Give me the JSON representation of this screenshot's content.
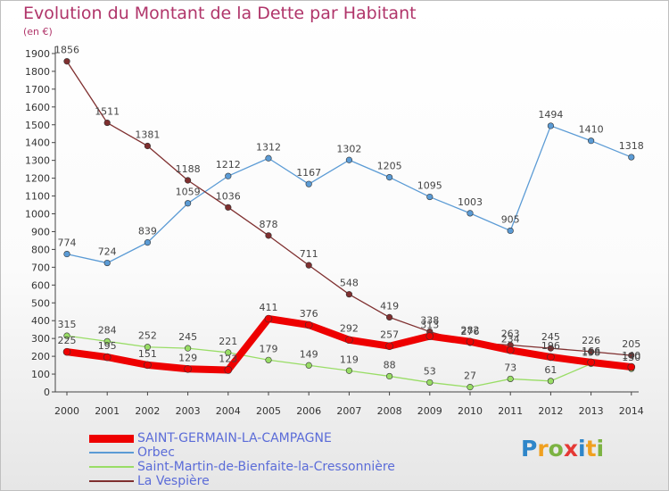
{
  "title": "Evolution du Montant de la Dette par Habitant",
  "unit": "(en €)",
  "logo": "Proxiti",
  "logo_colors": [
    "#2f86c9",
    "#f0a020",
    "#7cb342",
    "#e53935",
    "#2f86c9",
    "#f0a020",
    "#7cb342"
  ],
  "chart_data": {
    "type": "line",
    "title": "Evolution du Montant de la Dette par Habitant",
    "ylabel": "(en €)",
    "xlabel": "",
    "ylim": [
      0,
      1900
    ],
    "yticks": [
      0,
      100,
      200,
      300,
      400,
      500,
      600,
      700,
      800,
      900,
      1000,
      1100,
      1200,
      1300,
      1400,
      1500,
      1600,
      1700,
      1800,
      1900
    ],
    "x": [
      "2000",
      "2001",
      "2002",
      "2003",
      "2004",
      "2005",
      "2006",
      "2007",
      "2008",
      "2009",
      "2010",
      "2011",
      "2012",
      "2013",
      "2014"
    ],
    "grid": false,
    "legend_position": "bottom-left",
    "series": [
      {
        "name": "Orbec",
        "color": "#5b9bd5",
        "values": [
          774,
          724,
          839,
          1059,
          1212,
          1312,
          1167,
          1302,
          1205,
          1095,
          1003,
          905,
          1494,
          1410,
          1318
        ]
      },
      {
        "name": "Saint-Martin-de-Bienfaite-la-Cressonnière",
        "color": "#99dd66",
        "values": [
          315,
          284,
          252,
          245,
          221,
          179,
          149,
          119,
          88,
          53,
          27,
          73,
          61,
          158,
          130
        ]
      },
      {
        "name": "La Vespière",
        "color": "#7f2f2f",
        "values": [
          1856,
          1511,
          1381,
          1188,
          1036,
          878,
          711,
          548,
          419,
          338,
          276,
          263,
          245,
          226,
          205
        ]
      },
      {
        "name": "SAINT-GERMAIN-LA-CAMPAGNE",
        "color": "#ee0000",
        "values": [
          225,
          195,
          151,
          129,
          123,
          411,
          376,
          292,
          257,
          313,
          282,
          234,
          196,
          166,
          140
        ]
      }
    ]
  },
  "legend": [
    {
      "name": "SAINT-GERMAIN-LA-CAMPAGNE",
      "color": "#ee0000",
      "label_color": "#5b6cd8"
    },
    {
      "name": "Orbec",
      "color": "#5b9bd5",
      "label_color": "#5b6cd8"
    },
    {
      "name": "Saint-Martin-de-Bienfaite-la-Cressonnière",
      "color": "#99dd66",
      "label_color": "#5b6cd8"
    },
    {
      "name": "La Vespière",
      "color": "#7f2f2f",
      "label_color": "#5b6cd8"
    }
  ]
}
